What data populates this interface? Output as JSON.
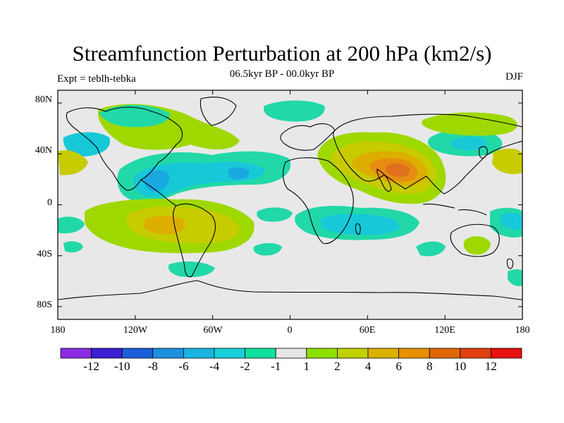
{
  "map": {
    "title": "Streamfunction Perturbation at 200 hPa (km2/s)",
    "subtitle": "06.5kyr BP - 00.0kyr BP",
    "left_label": "Expt = teblh-tebka",
    "right_label": "DJF",
    "lat_labels": [
      "80N",
      "40N",
      "0",
      "40S",
      "80S"
    ],
    "lon_labels": [
      "180",
      "120W",
      "60W",
      "0",
      "60E",
      "120E",
      "180"
    ]
  },
  "colorbar": {
    "colors": [
      "#8a2be2",
      "#3a1fd0",
      "#1a5fd8",
      "#1e90e0",
      "#1ab4e0",
      "#17d0d8",
      "#12e0a0",
      "#e6e6e6",
      "#8ee000",
      "#c2d000",
      "#dcb000",
      "#e89000",
      "#e06800",
      "#e04010",
      "#e81010"
    ],
    "labels": [
      "-12",
      "-10",
      "-8",
      "-6",
      "-4",
      "-2",
      "-1",
      "1",
      "2",
      "4",
      "6",
      "8",
      "10",
      "12"
    ]
  },
  "chart_data": {
    "type": "filled-contour-map",
    "title": "Streamfunction Perturbation at 200 hPa (km2/s)",
    "subtitle": "06.5kyr BP - 00.0kyr BP",
    "left_string": "Expt = teblh-tebka",
    "right_string": "DJF",
    "lat_range": [
      -90,
      90
    ],
    "lon_range": [
      -180,
      180
    ],
    "levels": [
      -12,
      -10,
      -8,
      -6,
      -4,
      -2,
      -1,
      1,
      2,
      4,
      6,
      8,
      10,
      12
    ],
    "features": [
      {
        "region": "South Asia / Tibet",
        "sign": "positive",
        "peak_level": 6
      },
      {
        "region": "Southeast Pacific (off South America)",
        "sign": "positive",
        "peak_level": 4
      },
      {
        "region": "North Atlantic / Caribbean",
        "sign": "negative",
        "peak_level": -4
      },
      {
        "region": "Northeast Pacific",
        "sign": "negative",
        "peak_level": -2
      },
      {
        "region": "South Atlantic / Southern Africa",
        "sign": "negative",
        "peak_level": -2
      },
      {
        "region": "Australia",
        "sign": "positive",
        "peak_level": 2
      }
    ]
  }
}
